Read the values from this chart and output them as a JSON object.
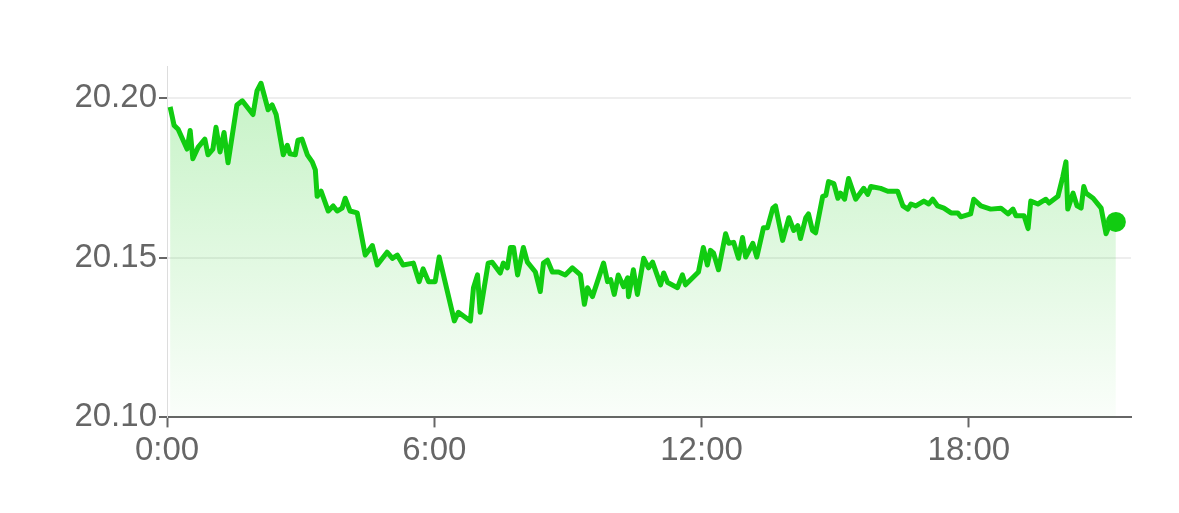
{
  "chart_data": {
    "type": "area",
    "xlim": [
      0,
      21.64
    ],
    "ylim": [
      20.1,
      20.21
    ],
    "xticks": [
      {
        "value": 0,
        "label": "0:00"
      },
      {
        "value": 6,
        "label": "6:00"
      },
      {
        "value": 12,
        "label": "12:00"
      },
      {
        "value": 18,
        "label": "18:00"
      }
    ],
    "yticks": [
      {
        "value": 20.1,
        "label": "20.10"
      },
      {
        "value": 20.15,
        "label": "20.15"
      },
      {
        "value": 20.2,
        "label": "20.20"
      }
    ],
    "grid": "y",
    "legend": false,
    "series": [
      {
        "color": "#11cc11",
        "x": [
          0.07,
          0.16,
          0.25,
          0.45,
          0.52,
          0.58,
          0.7,
          0.85,
          0.92,
          1.03,
          1.1,
          1.19,
          1.28,
          1.37,
          1.57,
          1.69,
          1.93,
          2.02,
          2.11,
          2.27,
          2.36,
          2.45,
          2.61,
          2.7,
          2.76,
          2.88,
          2.94,
          3.03,
          3.15,
          3.26,
          3.33,
          3.37,
          3.46,
          3.62,
          3.73,
          3.82,
          3.93,
          4.0,
          4.11,
          4.27,
          4.45,
          4.61,
          4.72,
          4.94,
          5.06,
          5.17,
          5.3,
          5.53,
          5.66,
          5.75,
          5.87,
          6.02,
          6.11,
          6.45,
          6.54,
          6.81,
          6.88,
          6.97,
          7.03,
          7.21,
          7.3,
          7.48,
          7.55,
          7.64,
          7.71,
          7.78,
          7.87,
          8.0,
          8.09,
          8.27,
          8.38,
          8.45,
          8.54,
          8.65,
          8.79,
          8.94,
          9.1,
          9.28,
          9.37,
          9.44,
          9.55,
          9.8,
          9.89,
          9.96,
          10.04,
          10.13,
          10.25,
          10.34,
          10.36,
          10.47,
          10.56,
          10.7,
          10.81,
          10.9,
          11.08,
          11.15,
          11.24,
          11.46,
          11.57,
          11.64,
          11.93,
          12.04,
          12.13,
          12.2,
          12.27,
          12.38,
          12.54,
          12.61,
          12.72,
          12.83,
          12.92,
          12.99,
          13.15,
          13.24,
          13.39,
          13.48,
          13.6,
          13.66,
          13.82,
          13.96,
          14.07,
          14.16,
          14.22,
          14.34,
          14.4,
          14.49,
          14.56,
          14.72,
          14.79,
          14.85,
          14.97,
          15.06,
          15.12,
          15.21,
          15.3,
          15.46,
          15.64,
          15.73,
          15.8,
          16.02,
          16.18,
          16.4,
          16.52,
          16.63,
          16.7,
          16.81,
          16.99,
          17.1,
          17.19,
          17.3,
          17.44,
          17.6,
          17.75,
          17.82,
          18.04,
          18.11,
          18.27,
          18.49,
          18.72,
          18.88,
          18.99,
          19.06,
          19.24,
          19.33,
          19.39,
          19.55,
          19.73,
          19.8,
          20.0,
          20.11,
          20.18,
          20.22,
          20.34,
          20.43,
          20.52,
          20.58,
          20.63,
          20.79,
          20.97,
          21.08,
          21.15,
          21.3
        ],
        "values": [
          20.1972,
          20.1914,
          20.1902,
          20.184,
          20.1898,
          20.181,
          20.1846,
          20.1871,
          20.1822,
          20.184,
          20.1908,
          20.1831,
          20.1892,
          20.1797,
          20.1978,
          20.1991,
          20.1948,
          20.2022,
          20.2046,
          20.1963,
          20.1978,
          20.1948,
          20.1822,
          20.1852,
          20.1825,
          20.1822,
          20.1868,
          20.1871,
          20.1822,
          20.18,
          20.1775,
          20.1692,
          20.1708,
          20.1646,
          20.1662,
          20.1646,
          20.1655,
          20.1686,
          20.1646,
          20.164,
          20.1508,
          20.1538,
          20.1477,
          20.1517,
          20.1498,
          20.1508,
          20.1477,
          20.1483,
          20.1425,
          20.1465,
          20.1425,
          20.1425,
          20.1502,
          20.1302,
          20.1329,
          20.1302,
          20.1406,
          20.1446,
          20.1329,
          20.1483,
          20.1486,
          20.1452,
          20.1483,
          20.1468,
          20.1532,
          20.1532,
          20.1446,
          20.1532,
          20.1486,
          20.1455,
          20.1394,
          20.1483,
          20.1492,
          20.1455,
          20.1455,
          20.1446,
          20.1468,
          20.1446,
          20.1354,
          20.1406,
          20.1378,
          20.1483,
          20.1425,
          20.1431,
          20.1385,
          20.1446,
          20.1409,
          20.1437,
          20.1378,
          20.1462,
          20.1385,
          20.1498,
          20.1468,
          20.1486,
          20.1415,
          20.1452,
          20.1422,
          20.1406,
          20.1446,
          20.1415,
          20.1455,
          20.1532,
          20.1477,
          20.1523,
          20.1514,
          20.1462,
          20.1575,
          20.1545,
          20.1548,
          20.1498,
          20.1563,
          20.1502,
          20.1545,
          20.1502,
          20.1594,
          20.1594,
          20.1655,
          20.1662,
          20.1554,
          20.1625,
          20.1585,
          20.16,
          20.156,
          20.1625,
          20.1637,
          20.1585,
          20.1578,
          20.1692,
          20.1695,
          20.1738,
          20.1732,
          20.1686,
          20.1702,
          20.1683,
          20.1748,
          20.1683,
          20.1717,
          20.1698,
          20.1723,
          20.1717,
          20.1708,
          20.1708,
          20.1662,
          20.1652,
          20.1668,
          20.1662,
          20.1677,
          20.1668,
          20.1683,
          20.1662,
          20.1655,
          20.164,
          20.164,
          20.1628,
          20.1637,
          20.1683,
          20.1662,
          20.1652,
          20.1655,
          20.1637,
          20.1652,
          20.1631,
          20.1631,
          20.1591,
          20.1677,
          20.1668,
          20.1683,
          20.1671,
          20.1692,
          20.1754,
          20.18,
          20.1652,
          20.1702,
          20.1662,
          20.1655,
          20.1723,
          20.1702,
          20.1686,
          20.1655,
          20.1575,
          20.16,
          20.1612
        ]
      }
    ]
  }
}
